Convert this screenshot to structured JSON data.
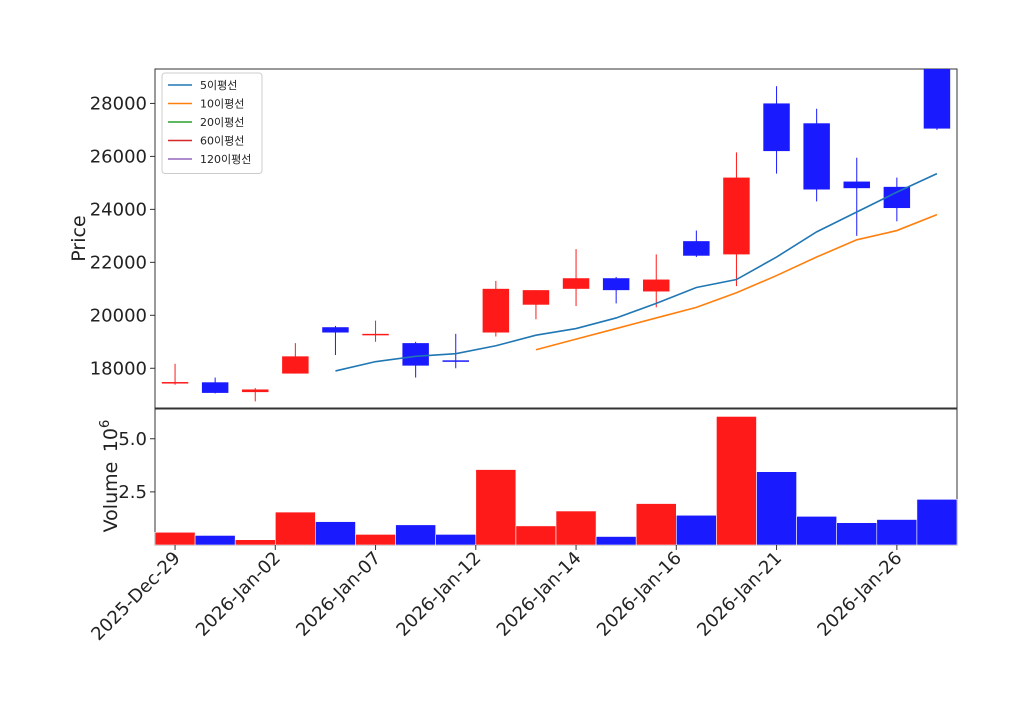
{
  "chart_data": [
    {
      "type": "candlestick",
      "ylabel": "Price",
      "ylim": [
        16500,
        29300
      ],
      "yticks": [
        18000,
        20000,
        22000,
        24000,
        26000,
        28000
      ],
      "up_color": "#ff1a1a",
      "down_color": "#1a1aff",
      "candles": [
        {
          "date": "2025-Dec-29",
          "open": 17430,
          "high": 18170,
          "low": 17380,
          "close": 17480
        },
        {
          "date": "2025-Dec-30",
          "open": 17470,
          "high": 17650,
          "low": 17050,
          "close": 17070
        },
        {
          "date": "2025-Dec-31",
          "open": 17100,
          "high": 17250,
          "low": 16750,
          "close": 17200
        },
        {
          "date": "2026-Jan-02",
          "open": 17800,
          "high": 18950,
          "low": 17800,
          "close": 18450
        },
        {
          "date": "2026-Jan-05",
          "open": 19550,
          "high": 19600,
          "low": 18500,
          "close": 19350
        },
        {
          "date": "2026-Jan-06",
          "open": 19250,
          "high": 19800,
          "low": 19000,
          "close": 19300
        },
        {
          "date": "2026-Jan-07",
          "open": 18950,
          "high": 19000,
          "low": 17650,
          "close": 18100
        },
        {
          "date": "2026-Jan-08",
          "open": 18300,
          "high": 19300,
          "low": 18000,
          "close": 18250
        },
        {
          "date": "2026-Jan-12",
          "open": 19350,
          "high": 21300,
          "low": 19200,
          "close": 21000
        },
        {
          "date": "2026-Jan-13",
          "open": 20400,
          "high": 20950,
          "low": 19850,
          "close": 20950
        },
        {
          "date": "2026-Jan-14",
          "open": 21000,
          "high": 22500,
          "low": 20350,
          "close": 21400
        },
        {
          "date": "2026-Jan-15",
          "open": 21400,
          "high": 21450,
          "low": 20450,
          "close": 20950
        },
        {
          "date": "2026-Jan-16",
          "open": 20900,
          "high": 22300,
          "low": 20300,
          "close": 21350
        },
        {
          "date": "2026-Jan-19",
          "open": 22800,
          "high": 23200,
          "low": 22200,
          "close": 22250
        },
        {
          "date": "2026-Jan-20",
          "open": 22300,
          "high": 26150,
          "low": 21100,
          "close": 25200
        },
        {
          "date": "2026-Jan-21",
          "open": 28000,
          "high": 28650,
          "low": 25350,
          "close": 26200
        },
        {
          "date": "2026-Jan-22",
          "open": 27250,
          "high": 27800,
          "low": 24300,
          "close": 24750
        },
        {
          "date": "2026-Jan-23",
          "open": 25050,
          "high": 25950,
          "low": 23000,
          "close": 24800
        },
        {
          "date": "2026-Jan-26",
          "open": 24850,
          "high": 25200,
          "low": 23550,
          "close": 24050
        },
        {
          "date": "2026-Jan-27",
          "open": 29300,
          "high": 29300,
          "low": 27000,
          "close": 27050
        }
      ],
      "moving_averages": [
        {
          "name": "5이평선",
          "color": "#1f77b4",
          "values": [
            null,
            null,
            null,
            null,
            17900,
            18250,
            18450,
            18550,
            18850,
            19250,
            19500,
            19900,
            20450,
            21050,
            21350,
            22200,
            23150,
            23900,
            24650,
            25350
          ]
        },
        {
          "name": "10이평선",
          "color": "#ff7f0e",
          "values": [
            null,
            null,
            null,
            null,
            null,
            null,
            null,
            null,
            null,
            18700,
            19100,
            19500,
            19900,
            20300,
            20850,
            21500,
            22200,
            22850,
            23200,
            23800
          ]
        },
        {
          "name": "20이평선",
          "color": "#2ca02c",
          "values": []
        },
        {
          "name": "60이평선",
          "color": "#d62728",
          "values": []
        },
        {
          "name": "120이평선",
          "color": "#9467bd",
          "values": []
        }
      ],
      "legend_position": "top-left",
      "xtick_labels": [
        "2025-Dec-29",
        "2026-Jan-02",
        "2026-Jan-07",
        "2026-Jan-12",
        "2026-Jan-14",
        "2026-Jan-16",
        "2026-Jan-21",
        "2026-Jan-26"
      ],
      "xtick_positions": [
        0,
        2.5,
        5,
        7.5,
        10,
        12.5,
        15,
        18
      ]
    },
    {
      "type": "bar",
      "ylabel": "Volume",
      "y_multiplier_label": "10",
      "y_multiplier_exp": "6",
      "ylim": [
        0,
        6.4
      ],
      "yticks": [
        2.5,
        5.0
      ],
      "ytick_labels": [
        "2.5",
        "5.0"
      ],
      "values": [
        0.6,
        0.45,
        0.25,
        1.55,
        1.1,
        0.5,
        0.95,
        0.5,
        3.55,
        0.9,
        1.6,
        0.4,
        1.95,
        1.4,
        6.05,
        3.45,
        1.35,
        1.05,
        1.2,
        2.15
      ],
      "colors": [
        "up",
        "down",
        "up",
        "up",
        "down",
        "up",
        "down",
        "down",
        "up",
        "up",
        "up",
        "down",
        "up",
        "down",
        "up",
        "down",
        "down",
        "down",
        "down",
        "down"
      ]
    }
  ]
}
